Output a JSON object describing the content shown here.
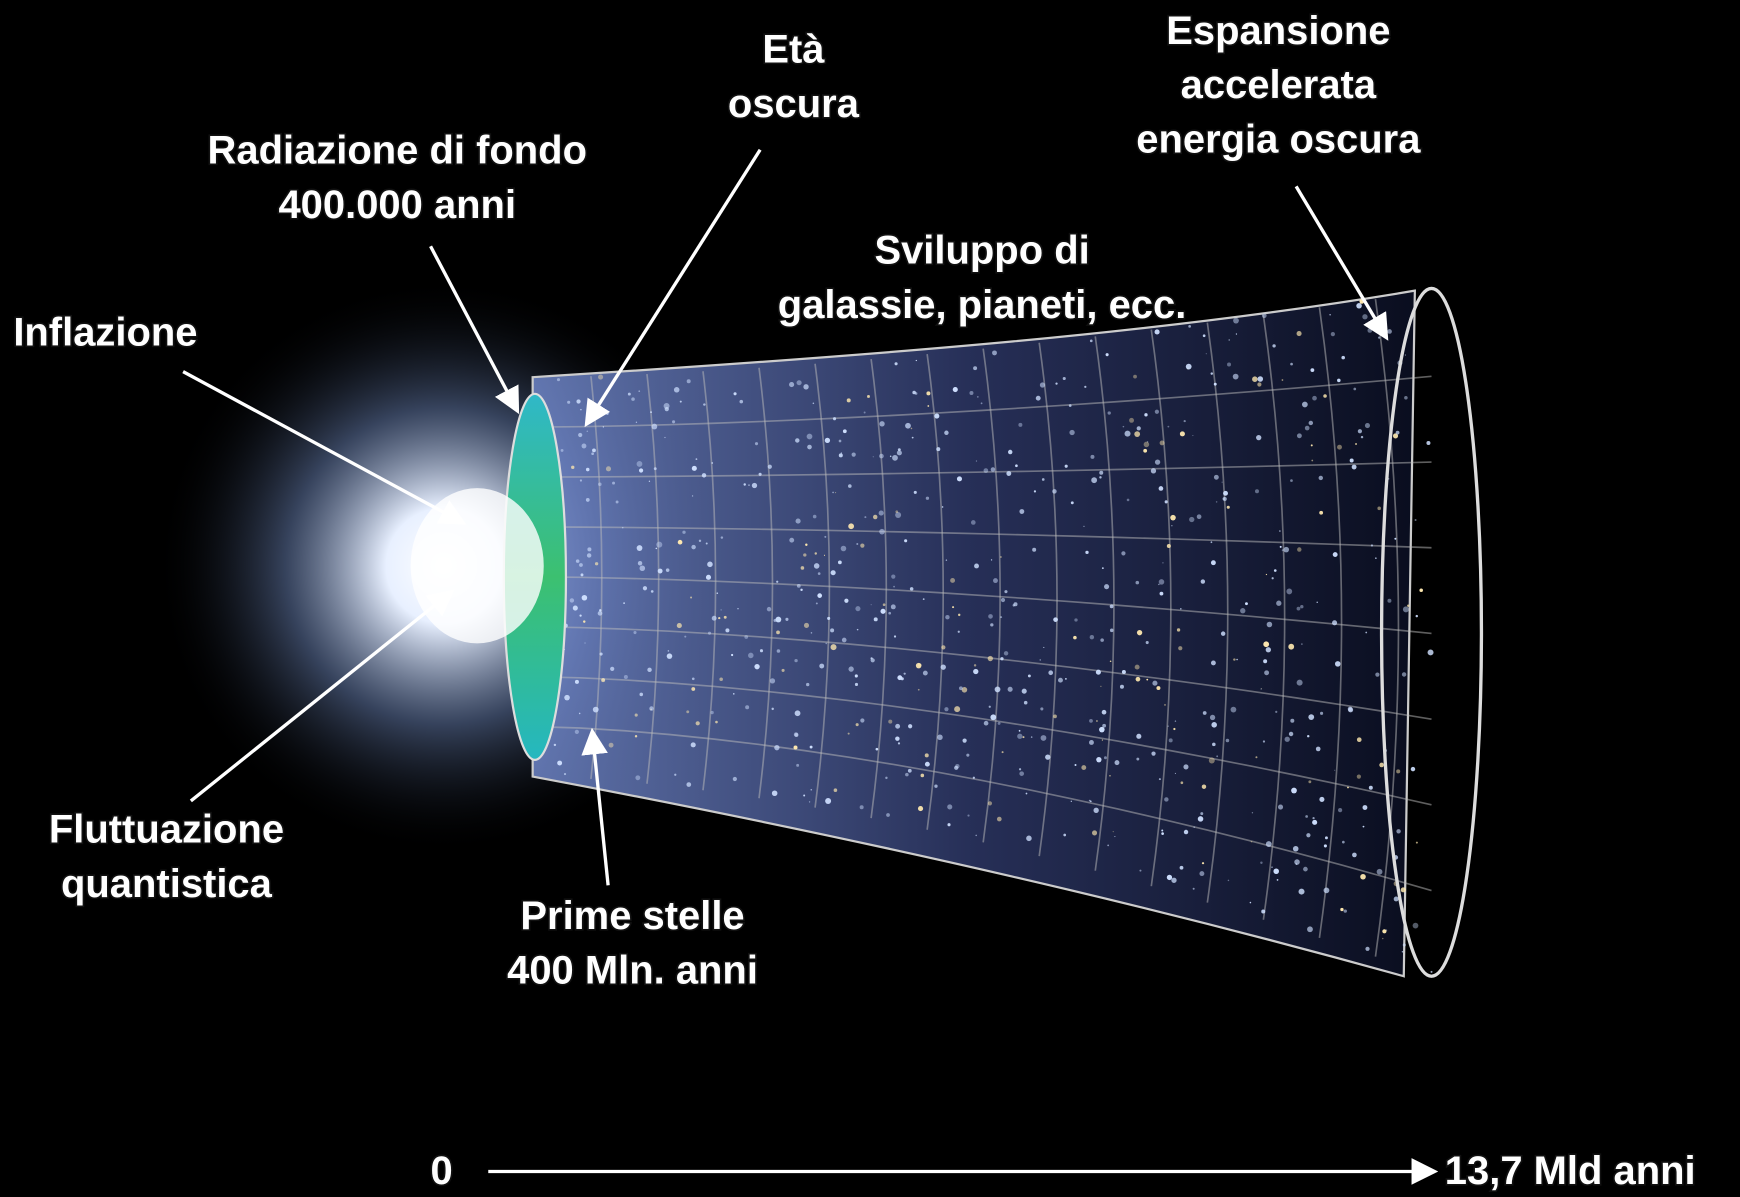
{
  "labels": [
    {
      "lines": [
        "Età",
        "oscura"
      ]
    },
    {
      "lines": [
        "Espansione",
        "accelerata",
        "energia oscura"
      ]
    },
    {
      "lines": [
        "Radiazione di fondo",
        "400.000 anni"
      ]
    },
    {
      "lines": [
        "Sviluppo di",
        "galassie, pianeti, ecc."
      ]
    },
    {
      "lines": [
        "Inflazione"
      ]
    },
    {
      "lines": [
        "Fluttuazione",
        "quantistica"
      ]
    },
    {
      "lines": [
        "Prime stelle",
        "400 Mln. anni"
      ]
    }
  ],
  "axis": {
    "start": "0",
    "end": "13,7 Mld anni"
  }
}
